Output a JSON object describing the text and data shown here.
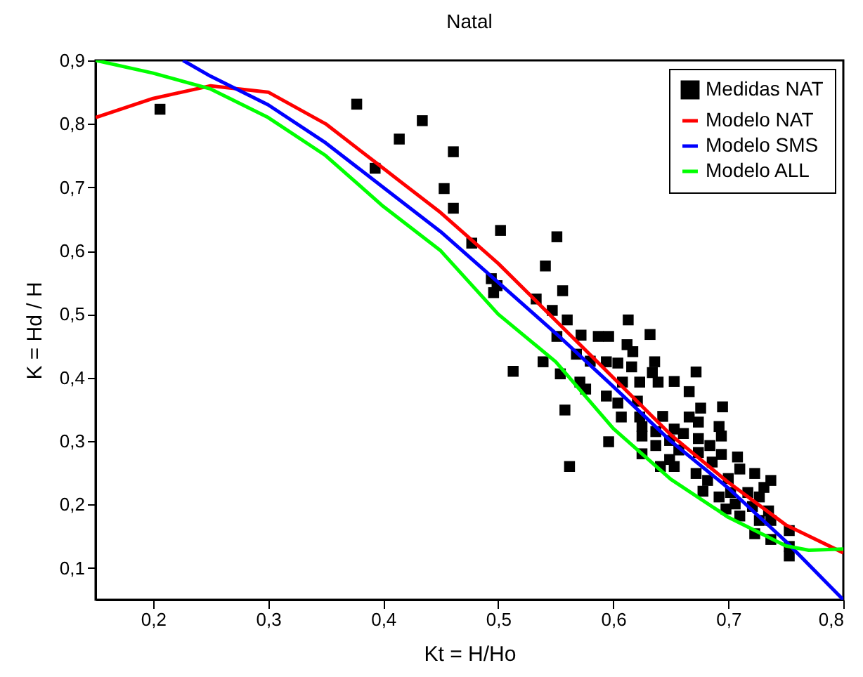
{
  "chart_data": {
    "type": "scatter",
    "title": "Natal",
    "xlabel": "Kt = H/Ho",
    "ylabel": "K = Hd / H",
    "xlim": [
      0.15,
      0.8
    ],
    "ylim": [
      0.05,
      0.9
    ],
    "xticks": [
      {
        "value": 0.2,
        "label": "0,2"
      },
      {
        "value": 0.3,
        "label": "0,3"
      },
      {
        "value": 0.4,
        "label": "0,4"
      },
      {
        "value": 0.5,
        "label": "0,5"
      },
      {
        "value": 0.6,
        "label": "0,6"
      },
      {
        "value": 0.7,
        "label": "0,7"
      },
      {
        "value": 0.8,
        "label": "0,8"
      }
    ],
    "yticks": [
      {
        "value": 0.1,
        "label": "0,1"
      },
      {
        "value": 0.2,
        "label": "0,2"
      },
      {
        "value": 0.3,
        "label": "0,3"
      },
      {
        "value": 0.4,
        "label": "0,4"
      },
      {
        "value": 0.5,
        "label": "0,5"
      },
      {
        "value": 0.6,
        "label": "0,6"
      },
      {
        "value": 0.7,
        "label": "0,7"
      },
      {
        "value": 0.8,
        "label": "0,8"
      },
      {
        "value": 0.9,
        "label": "0,9"
      }
    ],
    "grid": false,
    "legend": "top right",
    "series": [
      {
        "name": "Medidas NAT",
        "marker": "square",
        "color": "#000000",
        "x": [
          0.206,
          0.377,
          0.434,
          0.414,
          0.461,
          0.393,
          0.453,
          0.461,
          0.502,
          0.477,
          0.494,
          0.496,
          0.551,
          0.541,
          0.499,
          0.556,
          0.533,
          0.547,
          0.56,
          0.613,
          0.551,
          0.572,
          0.587,
          0.596,
          0.632,
          0.612,
          0.617,
          0.568,
          0.539,
          0.513,
          0.58,
          0.594,
          0.604,
          0.636,
          0.616,
          0.554,
          0.634,
          0.672,
          0.639,
          0.653,
          0.571,
          0.608,
          0.623,
          0.576,
          0.666,
          0.594,
          0.604,
          0.621,
          0.676,
          0.695,
          0.558,
          0.607,
          0.623,
          0.643,
          0.666,
          0.674,
          0.625,
          0.653,
          0.692,
          0.637,
          0.661,
          0.625,
          0.694,
          0.674,
          0.596,
          0.649,
          0.684,
          0.637,
          0.657,
          0.625,
          0.674,
          0.694,
          0.708,
          0.649,
          0.686,
          0.71,
          0.641,
          0.562,
          0.653,
          0.672,
          0.723,
          0.737,
          0.7,
          0.682,
          0.731,
          0.678,
          0.702,
          0.717,
          0.692,
          0.727,
          0.706,
          0.721,
          0.698,
          0.735,
          0.71,
          0.727,
          0.737,
          0.753,
          0.723,
          0.737,
          0.753,
          0.753
        ],
        "values": [
          0.823,
          0.831,
          0.805,
          0.776,
          0.756,
          0.73,
          0.698,
          0.667,
          0.632,
          0.612,
          0.556,
          0.534,
          0.622,
          0.576,
          0.545,
          0.537,
          0.524,
          0.506,
          0.491,
          0.491,
          0.465,
          0.467,
          0.465,
          0.465,
          0.468,
          0.452,
          0.441,
          0.437,
          0.425,
          0.41,
          0.426,
          0.425,
          0.423,
          0.425,
          0.417,
          0.406,
          0.408,
          0.409,
          0.393,
          0.394,
          0.393,
          0.393,
          0.393,
          0.382,
          0.378,
          0.371,
          0.36,
          0.363,
          0.352,
          0.354,
          0.349,
          0.338,
          0.338,
          0.339,
          0.338,
          0.33,
          0.323,
          0.319,
          0.323,
          0.315,
          0.312,
          0.308,
          0.308,
          0.304,
          0.299,
          0.301,
          0.293,
          0.293,
          0.286,
          0.28,
          0.282,
          0.279,
          0.275,
          0.271,
          0.267,
          0.256,
          0.26,
          0.26,
          0.26,
          0.249,
          0.249,
          0.238,
          0.241,
          0.238,
          0.227,
          0.221,
          0.219,
          0.219,
          0.212,
          0.212,
          0.201,
          0.197,
          0.193,
          0.19,
          0.182,
          0.175,
          0.175,
          0.159,
          0.154,
          0.145,
          0.134,
          0.119
        ]
      },
      {
        "name": "Modelo NAT",
        "type": "line",
        "color": "#ff0000",
        "x": [
          0.15,
          0.2,
          0.25,
          0.3,
          0.35,
          0.4,
          0.45,
          0.5,
          0.55,
          0.6,
          0.65,
          0.7,
          0.75,
          0.8
        ],
        "values": [
          0.81,
          0.84,
          0.86,
          0.85,
          0.8,
          0.73,
          0.66,
          0.58,
          0.49,
          0.4,
          0.31,
          0.235,
          0.168,
          0.124
        ]
      },
      {
        "name": "Modelo SMS",
        "type": "line",
        "color": "#0000ff",
        "x": [
          0.226,
          0.25,
          0.3,
          0.35,
          0.4,
          0.45,
          0.5,
          0.55,
          0.6,
          0.65,
          0.7,
          0.75,
          0.8
        ],
        "values": [
          0.9,
          0.875,
          0.83,
          0.77,
          0.7,
          0.63,
          0.55,
          0.47,
          0.386,
          0.3,
          0.226,
          0.142,
          0.05
        ]
      },
      {
        "name": "Modelo ALL",
        "type": "line",
        "color": "#00ff00",
        "x": [
          0.15,
          0.2,
          0.25,
          0.3,
          0.35,
          0.4,
          0.45,
          0.5,
          0.55,
          0.6,
          0.65,
          0.7,
          0.75,
          0.77,
          0.8
        ],
        "values": [
          0.9,
          0.88,
          0.855,
          0.81,
          0.75,
          0.67,
          0.6,
          0.5,
          0.425,
          0.32,
          0.24,
          0.18,
          0.135,
          0.128,
          0.13
        ]
      }
    ]
  }
}
